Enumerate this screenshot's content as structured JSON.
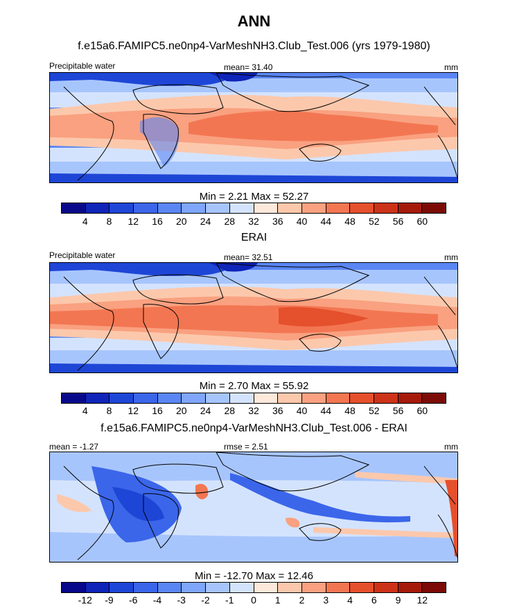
{
  "figure": {
    "title": "ANN"
  },
  "chart_data": [
    {
      "type": "heatmap",
      "title": "f.e15a6.FAMIPC5.ne0np4-VarMeshNH3.Club_Test.006 (yrs 1979-1980)",
      "left_label": "Precipitable water",
      "center_label": "mean=  31.40",
      "units": "mm",
      "min_max_text": "Min =   2.21 Max =  52.27",
      "min": 2.21,
      "max": 52.27,
      "mean": 31.4,
      "colorbar_levels": [
        "4",
        "8",
        "12",
        "16",
        "20",
        "24",
        "28",
        "32",
        "36",
        "40",
        "44",
        "48",
        "52",
        "56",
        "60"
      ],
      "colorbar_colors": [
        "#08088a",
        "#0f24b8",
        "#1e46d6",
        "#3b66ea",
        "#5a86f4",
        "#7fa6fa",
        "#a7c5fd",
        "#d4e3fd",
        "#fde9dc",
        "#fcc8ac",
        "#f9a180",
        "#f37652",
        "#e5502d",
        "#cc3218",
        "#a61a0b",
        "#7c0a06"
      ]
    },
    {
      "type": "heatmap",
      "title": "ERAI",
      "left_label": "Precipitable water",
      "center_label": "mean=  32.51",
      "units": "mm",
      "min_max_text": "Min =   2.70 Max =  55.92",
      "min": 2.7,
      "max": 55.92,
      "mean": 32.51,
      "colorbar_levels": [
        "4",
        "8",
        "12",
        "16",
        "20",
        "24",
        "28",
        "32",
        "36",
        "40",
        "44",
        "48",
        "52",
        "56",
        "60"
      ],
      "colorbar_colors": [
        "#08088a",
        "#0f24b8",
        "#1e46d6",
        "#3b66ea",
        "#5a86f4",
        "#7fa6fa",
        "#a7c5fd",
        "#d4e3fd",
        "#fde9dc",
        "#fcc8ac",
        "#f9a180",
        "#f37652",
        "#e5502d",
        "#cc3218",
        "#a61a0b",
        "#7c0a06"
      ]
    },
    {
      "type": "heatmap",
      "title": "f.e15a6.FAMIPC5.ne0np4-VarMeshNH3.Club_Test.006 - ERAI",
      "left_label": "mean =  -1.27",
      "center_label": "rmse =   2.51",
      "units": "mm",
      "min_max_text": "Min = -12.70 Max =  12.46",
      "min": -12.7,
      "max": 12.46,
      "mean": -1.27,
      "rmse": 2.51,
      "colorbar_levels": [
        "-12",
        "-9",
        "-6",
        "-4",
        "-3",
        "-2",
        "-1",
        "0",
        "1",
        "2",
        "3",
        "4",
        "6",
        "9",
        "12"
      ],
      "colorbar_colors": [
        "#08088a",
        "#0f24b8",
        "#1e46d6",
        "#3b66ea",
        "#5a86f4",
        "#7fa6fa",
        "#a7c5fd",
        "#d4e3fd",
        "#fde9dc",
        "#fcc8ac",
        "#f9a180",
        "#f37652",
        "#e5502d",
        "#cc3218",
        "#a61a0b",
        "#7c0a06"
      ]
    }
  ]
}
